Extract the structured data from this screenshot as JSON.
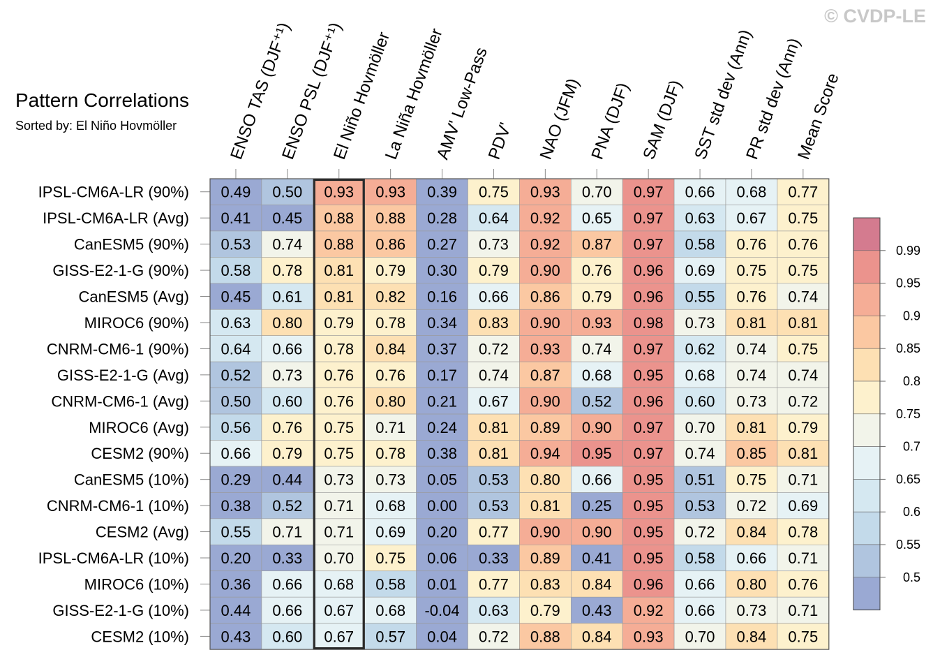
{
  "chart_data": {
    "type": "heatmap",
    "title": "Pattern Correlations",
    "subtitle": "Sorted by: El Niño Hovmöller",
    "watermark": "© CVDP-LE",
    "columns": [
      "ENSO TAS (DJF⁺¹)",
      "ENSO PSL (DJF⁺¹)",
      "El Niño Hovmöller",
      "La Niña Hovmöller",
      "AMV' Low-Pass",
      "PDV'",
      "NAO (JFM)",
      "PNA (DJF)",
      "SAM (DJF)",
      "SST std dev (Ann)",
      "PR std dev (Ann)",
      "Mean Score"
    ],
    "highlight_column": "El Niño Hovmöller",
    "rows": [
      "IPSL-CM6A-LR (90%)",
      "IPSL-CM6A-LR (Avg)",
      "CanESM5 (90%)",
      "GISS-E2-1-G (90%)",
      "CanESM5 (Avg)",
      "MIROC6 (90%)",
      "CNRM-CM6-1 (90%)",
      "GISS-E2-1-G (Avg)",
      "CNRM-CM6-1 (Avg)",
      "MIROC6 (Avg)",
      "CESM2 (90%)",
      "CanESM5 (10%)",
      "CNRM-CM6-1 (10%)",
      "CESM2 (Avg)",
      "IPSL-CM6A-LR (10%)",
      "MIROC6 (10%)",
      "GISS-E2-1-G (10%)",
      "CESM2 (10%)"
    ],
    "values": [
      [
        "0.49",
        "0.50",
        "0.93",
        "0.93",
        "0.39",
        "0.75",
        "0.93",
        "0.70",
        "0.97",
        "0.66",
        "0.68",
        "0.77"
      ],
      [
        "0.41",
        "0.45",
        "0.88",
        "0.88",
        "0.28",
        "0.64",
        "0.92",
        "0.65",
        "0.97",
        "0.63",
        "0.67",
        "0.75"
      ],
      [
        "0.53",
        "0.74",
        "0.88",
        "0.86",
        "0.27",
        "0.73",
        "0.92",
        "0.87",
        "0.97",
        "0.58",
        "0.76",
        "0.76"
      ],
      [
        "0.58",
        "0.78",
        "0.81",
        "0.79",
        "0.30",
        "0.79",
        "0.90",
        "0.76",
        "0.96",
        "0.69",
        "0.75",
        "0.75"
      ],
      [
        "0.45",
        "0.61",
        "0.81",
        "0.82",
        "0.16",
        "0.66",
        "0.86",
        "0.79",
        "0.96",
        "0.55",
        "0.76",
        "0.74"
      ],
      [
        "0.63",
        "0.80",
        "0.79",
        "0.78",
        "0.34",
        "0.83",
        "0.90",
        "0.93",
        "0.98",
        "0.73",
        "0.81",
        "0.81"
      ],
      [
        "0.64",
        "0.66",
        "0.78",
        "0.84",
        "0.37",
        "0.72",
        "0.93",
        "0.74",
        "0.97",
        "0.62",
        "0.74",
        "0.75"
      ],
      [
        "0.52",
        "0.73",
        "0.76",
        "0.76",
        "0.17",
        "0.74",
        "0.87",
        "0.68",
        "0.95",
        "0.68",
        "0.74",
        "0.74"
      ],
      [
        "0.50",
        "0.60",
        "0.76",
        "0.80",
        "0.21",
        "0.67",
        "0.90",
        "0.52",
        "0.96",
        "0.60",
        "0.73",
        "0.72"
      ],
      [
        "0.56",
        "0.76",
        "0.75",
        "0.71",
        "0.24",
        "0.81",
        "0.89",
        "0.90",
        "0.97",
        "0.70",
        "0.81",
        "0.79"
      ],
      [
        "0.66",
        "0.79",
        "0.75",
        "0.78",
        "0.38",
        "0.81",
        "0.94",
        "0.95",
        "0.97",
        "0.74",
        "0.85",
        "0.81"
      ],
      [
        "0.29",
        "0.44",
        "0.73",
        "0.73",
        "0.05",
        "0.53",
        "0.80",
        "0.66",
        "0.95",
        "0.51",
        "0.75",
        "0.71"
      ],
      [
        "0.38",
        "0.52",
        "0.71",
        "0.68",
        "0.00",
        "0.53",
        "0.81",
        "0.25",
        "0.95",
        "0.53",
        "0.72",
        "0.69"
      ],
      [
        "0.55",
        "0.71",
        "0.71",
        "0.69",
        "0.20",
        "0.77",
        "0.90",
        "0.90",
        "0.95",
        "0.72",
        "0.84",
        "0.78"
      ],
      [
        "0.20",
        "0.33",
        "0.70",
        "0.75",
        "0.06",
        "0.33",
        "0.89",
        "0.41",
        "0.95",
        "0.58",
        "0.66",
        "0.71"
      ],
      [
        "0.36",
        "0.66",
        "0.68",
        "0.58",
        "0.01",
        "0.77",
        "0.83",
        "0.84",
        "0.96",
        "0.66",
        "0.80",
        "0.76"
      ],
      [
        "0.44",
        "0.66",
        "0.67",
        "0.68",
        "-0.04",
        "0.63",
        "0.79",
        "0.43",
        "0.92",
        "0.66",
        "0.73",
        "0.71"
      ],
      [
        "0.43",
        "0.60",
        "0.67",
        "0.57",
        "0.04",
        "0.72",
        "0.88",
        "0.84",
        "0.93",
        "0.70",
        "0.84",
        "0.75"
      ]
    ],
    "colorbar": {
      "levels": [
        0.5,
        0.55,
        0.6,
        0.65,
        0.7,
        0.75,
        0.8,
        0.85,
        0.9,
        0.95,
        0.99
      ],
      "tick_labels": [
        "0.5",
        "0.55",
        "0.6",
        "0.65",
        "0.7",
        "0.75",
        "0.8",
        "0.85",
        "0.9",
        "0.95",
        "0.99"
      ],
      "colors": [
        "#9aa9d3",
        "#b0c5df",
        "#c3daea",
        "#d5e8f1",
        "#e6f2f5",
        "#f2f4ea",
        "#fdf1cd",
        "#fde0b3",
        "#fbc8a2",
        "#f5ad96",
        "#eb938d",
        "#d47b8f"
      ]
    }
  }
}
